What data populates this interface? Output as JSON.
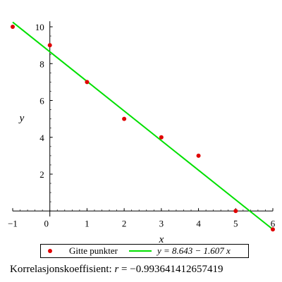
{
  "chart_data": {
    "type": "scatter",
    "xlabel": "x",
    "ylabel": "y",
    "xlim": [
      -1,
      6
    ],
    "ylim": [
      -0.3,
      10.3
    ],
    "x_ticks": [
      -1,
      1,
      2,
      3,
      4,
      5,
      6
    ],
    "x_origin_label": "0",
    "y_ticks": [
      2,
      4,
      6,
      8,
      10
    ],
    "series": [
      {
        "name": "Gitte punkter",
        "kind": "points",
        "color": "#e00000",
        "x": [
          -1,
          0,
          1,
          2,
          3,
          4,
          5,
          6
        ],
        "y": [
          10,
          9,
          7,
          5,
          4,
          3,
          0,
          -1
        ]
      },
      {
        "name": "y = 8.643 − 1.607 x",
        "kind": "line",
        "color": "#00e000",
        "intercept": 8.643,
        "slope": -1.607
      }
    ],
    "legend": {
      "placement": "bottom",
      "points_label": "Gitte punkter",
      "line_label": "y = 8.643 − 1.607 x"
    },
    "annotation": {
      "prefix": "Korrelasjonskoeffisient: ",
      "r_symbol": "r",
      "value_text": " = −0.993641412657419"
    }
  }
}
